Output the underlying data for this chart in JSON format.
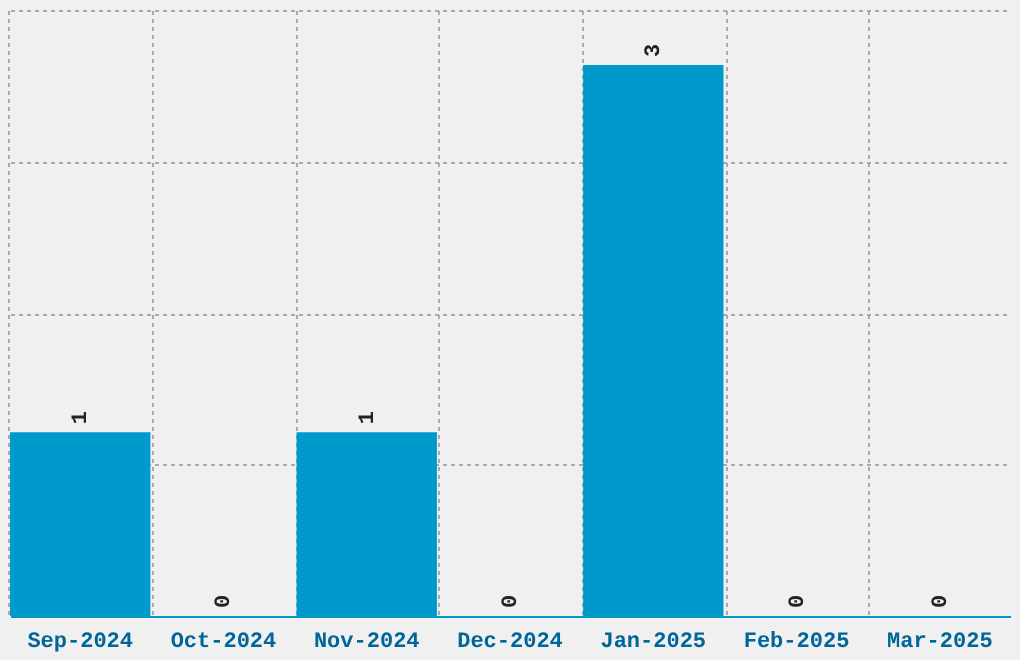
{
  "chart_data": {
    "type": "bar",
    "categories": [
      "Sep-2024",
      "Oct-2024",
      "Nov-2024",
      "Dec-2024",
      "Jan-2025",
      "Feb-2025",
      "Mar-2025"
    ],
    "values": [
      1,
      0,
      1,
      0,
      3,
      0,
      0
    ],
    "color": "#0099cc",
    "relative": false,
    "ylim": [
      0,
      3.3
    ],
    "yticks": [
      {
        "value": 0,
        "label": null
      },
      {
        "value": 0.825,
        "label": null
      },
      {
        "value": 1.65,
        "label": null
      },
      {
        "value": 2.475,
        "label": null
      },
      {
        "value": 3.3,
        "label": null
      }
    ],
    "tick_labels": "x",
    "grid": true,
    "data_labels": true
  }
}
